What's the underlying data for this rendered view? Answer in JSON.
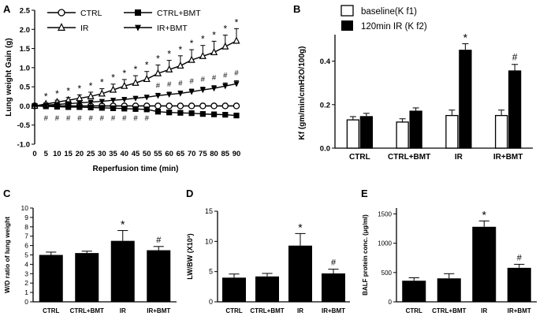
{
  "chart_data": [
    {
      "panel": "A",
      "type": "line",
      "title": "",
      "xlabel": "Reperfusion time (min)",
      "ylabel": "Lung weight Gain (g)",
      "x": [
        0,
        5,
        10,
        15,
        20,
        25,
        30,
        35,
        40,
        45,
        50,
        55,
        60,
        65,
        70,
        75,
        80,
        85,
        90
      ],
      "x_ticks": [
        "0",
        "5",
        "10",
        "15",
        "20",
        "25",
        "30",
        "35",
        "40",
        "45",
        "50",
        "55",
        "60",
        "65",
        "70",
        "75",
        "80",
        "85",
        "90"
      ],
      "xlim": [
        0,
        90
      ],
      "ylim": [
        -1.0,
        2.5
      ],
      "y_ticks": [
        "-1.0",
        "-0.5",
        "0.0",
        "0.5",
        "1.0",
        "1.5",
        "2.0",
        "2.5"
      ],
      "y_tick_values": [
        -1.0,
        -0.5,
        0.0,
        0.5,
        1.0,
        1.5,
        2.0,
        2.5
      ],
      "series": [
        {
          "name": "CTRL",
          "marker": "open-circle",
          "values": [
            0,
            0,
            0,
            0,
            0,
            0,
            0,
            0,
            0,
            0,
            0,
            0,
            0,
            0,
            0,
            0,
            0,
            0,
            0
          ]
        },
        {
          "name": "CTRL+BMT",
          "marker": "filled-square",
          "values": [
            0,
            -0.01,
            -0.02,
            -0.03,
            -0.03,
            -0.04,
            -0.05,
            -0.06,
            -0.07,
            -0.08,
            -0.09,
            -0.15,
            -0.17,
            -0.18,
            -0.19,
            -0.21,
            -0.22,
            -0.23,
            -0.25
          ]
        },
        {
          "name": "IR",
          "marker": "open-triangle",
          "values": [
            0,
            0.05,
            0.1,
            0.15,
            0.2,
            0.25,
            0.32,
            0.42,
            0.52,
            0.6,
            0.7,
            0.85,
            0.95,
            1.05,
            1.2,
            1.3,
            1.4,
            1.55,
            1.7
          ],
          "errors": [
            0,
            0.03,
            0.05,
            0.07,
            0.09,
            0.11,
            0.13,
            0.15,
            0.17,
            0.19,
            0.2,
            0.22,
            0.24,
            0.26,
            0.27,
            0.28,
            0.29,
            0.3,
            0.32
          ]
        },
        {
          "name": "IR+BMT",
          "marker": "filled-down-triangle",
          "values": [
            0,
            0.02,
            0.04,
            0.06,
            0.08,
            0.1,
            0.12,
            0.15,
            0.17,
            0.2,
            0.23,
            0.27,
            0.3,
            0.33,
            0.37,
            0.42,
            0.46,
            0.52,
            0.58
          ],
          "errors": [
            0,
            0.01,
            0.02,
            0.02,
            0.03,
            0.03,
            0.04,
            0.04,
            0.05,
            0.05,
            0.05,
            0.06,
            0.06,
            0.06,
            0.07,
            0.07,
            0.07,
            0.08,
            0.08
          ]
        }
      ],
      "annotations": {
        "ir_star_x": [
          5,
          10,
          15,
          20,
          25,
          30,
          35,
          40,
          45,
          50,
          55,
          60,
          65,
          70,
          75,
          80,
          85,
          90
        ],
        "irbmt_hash_x": [
          55,
          60,
          65,
          70,
          75,
          80,
          85,
          90
        ],
        "ctrlbmt_hash_x": [
          5,
          10,
          15,
          20,
          25,
          30,
          35,
          40,
          45,
          50
        ],
        "star": "*",
        "hash": "#"
      },
      "legend": {
        "position": "top",
        "entries": [
          "CTRL",
          "CTRL+BMT",
          "IR",
          "IR+BMT"
        ]
      }
    },
    {
      "panel": "B",
      "type": "bar",
      "xlabel": "",
      "ylabel": "Kf (gm/min/cmH2O/100g)",
      "categories": [
        "CTRL",
        "CTRL+BMT",
        "IR",
        "IR+BMT"
      ],
      "ylim": [
        0,
        0.5
      ],
      "y_ticks": [
        "0.0",
        "0.2",
        "0.4"
      ],
      "y_tick_values": [
        0,
        0.2,
        0.4
      ],
      "series": [
        {
          "name": "baseline(K f1)",
          "fill": "white",
          "values": [
            0.13,
            0.12,
            0.15,
            0.15
          ],
          "errors": [
            0.015,
            0.015,
            0.025,
            0.025
          ]
        },
        {
          "name": "120min IR (K f2)",
          "fill": "black",
          "values": [
            0.145,
            0.17,
            0.45,
            0.355
          ],
          "errors": [
            0.015,
            0.015,
            0.03,
            0.03
          ]
        }
      ],
      "annotations": [
        {
          "category": "IR",
          "text": "*"
        },
        {
          "category": "IR+BMT",
          "text": "#"
        }
      ],
      "legend": {
        "position": "top",
        "entries": [
          "baseline(K f1)",
          "120min IR (K f2)"
        ]
      }
    },
    {
      "panel": "C",
      "type": "bar",
      "ylabel": "W/D ratio of lung weight",
      "categories": [
        "CTRL",
        "CTRL+BMT",
        "IR",
        "IR+BMT"
      ],
      "values": [
        5.0,
        5.2,
        6.5,
        5.5
      ],
      "errors": [
        0.3,
        0.2,
        1.1,
        0.4
      ],
      "ylim": [
        0,
        10
      ],
      "y_ticks": [
        "0",
        "1",
        "2",
        "3",
        "4",
        "5",
        "6",
        "7",
        "8",
        "9",
        "10"
      ],
      "y_tick_values": [
        0,
        1,
        2,
        3,
        4,
        5,
        6,
        7,
        8,
        9,
        10
      ],
      "annotations": [
        {
          "category": "IR",
          "text": "*"
        },
        {
          "category": "IR+BMT",
          "text": "#"
        }
      ]
    },
    {
      "panel": "D",
      "type": "bar",
      "ylabel": "LW/BW (X10³)",
      "categories": [
        "CTRL",
        "CTRL+BMT",
        "IR",
        "IR+BMT"
      ],
      "values": [
        4.0,
        4.2,
        9.3,
        4.7
      ],
      "errors": [
        0.6,
        0.5,
        2.0,
        0.7
      ],
      "ylim": [
        0,
        15
      ],
      "y_ticks": [
        "0",
        "5",
        "10",
        "15"
      ],
      "y_tick_values": [
        0,
        5,
        10,
        15
      ],
      "annotations": [
        {
          "category": "IR",
          "text": "*"
        },
        {
          "category": "IR+BMT",
          "text": "#"
        }
      ]
    },
    {
      "panel": "E",
      "type": "bar",
      "ylabel": "BALF protein conc. (μg/ml)",
      "categories": [
        "CTRL",
        "CTRL+BMT",
        "IR",
        "IR+BMT"
      ],
      "values": [
        360,
        400,
        1280,
        580
      ],
      "errors": [
        50,
        80,
        100,
        60
      ],
      "ylim": [
        0,
        1600
      ],
      "y_ticks": [
        "0",
        "500",
        "1000",
        "1500"
      ],
      "y_tick_values": [
        0,
        500,
        1000,
        1500
      ],
      "annotations": [
        {
          "category": "IR",
          "text": "*"
        },
        {
          "category": "IR+BMT",
          "text": "#"
        }
      ]
    }
  ]
}
